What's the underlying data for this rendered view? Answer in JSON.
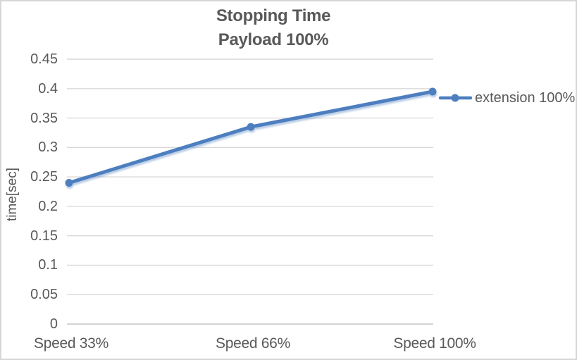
{
  "chart_data": {
    "type": "line",
    "title": "Stopping Time",
    "subtitle": "Payload 100%",
    "categories": [
      "Speed 33%",
      "Speed 66%",
      "Speed 100%"
    ],
    "series": [
      {
        "name": "extension 100%",
        "values": [
          0.24,
          0.335,
          0.395
        ],
        "color": "#4d7ebf",
        "marker": "circle"
      }
    ],
    "xlabel": "",
    "ylabel": "time[sec]",
    "ylim": [
      0,
      0.45
    ],
    "ytick_step": 0.05,
    "ytick_labels": [
      "0",
      "0.05",
      "0.1",
      "0.15",
      "0.2",
      "0.25",
      "0.3",
      "0.35",
      "0.4",
      "0.45"
    ],
    "grid": true,
    "legend": {
      "position": "right",
      "entries": [
        "extension 100%"
      ]
    },
    "colors": {
      "series_blue": "#4d7ebf",
      "gridline": "#d9d9d9",
      "axis_line": "#d3d3d3",
      "text": "#595959",
      "chart_border": "#d6d6d6",
      "background": "#ffffff"
    }
  }
}
